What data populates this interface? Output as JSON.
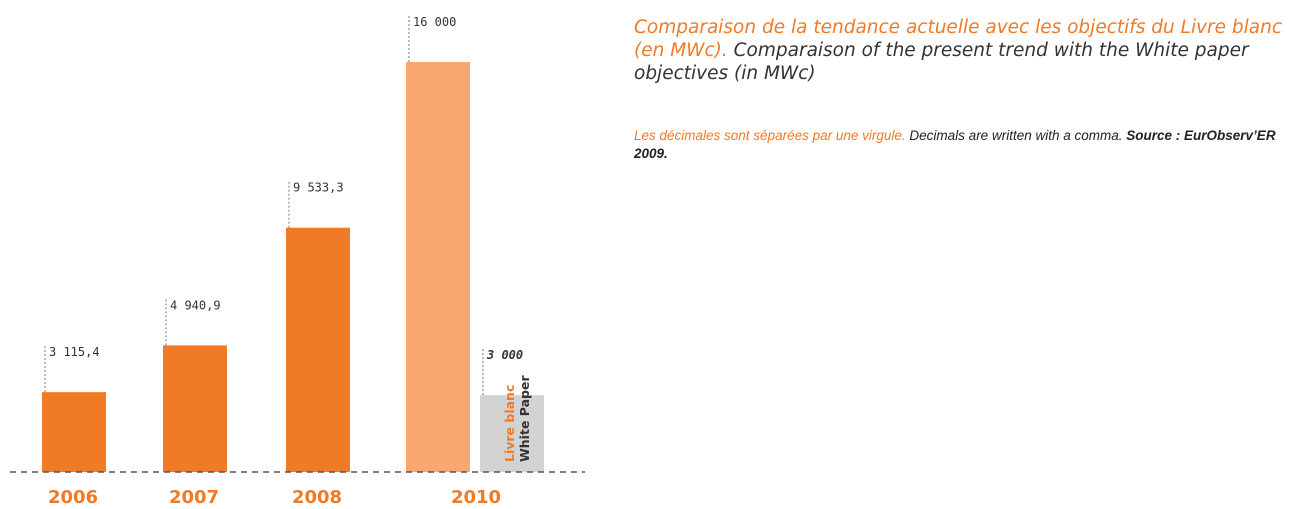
{
  "title": {
    "fr": "Comparaison de la tendance actuelle avec les objectifs du Livre blanc (en MWc).",
    "en": "Comparaison of the present trend with the White paper objectives (in MWc)"
  },
  "note": {
    "fr": "Les décimales sont séparées par une virgule.",
    "en": "Decimals are written with a comma.",
    "source_prefix": "Source :",
    "source_name": "EurObserv’ER 2009."
  },
  "colors": {
    "accent": "#f07a26",
    "light_accent": "#f8a86e",
    "grey": "#d3d3d3",
    "text": "#333333"
  },
  "chart_data": {
    "type": "bar",
    "ylim": [
      0,
      16000
    ],
    "grid": false,
    "bars": [
      {
        "category": "2006",
        "value": 3115.4,
        "label": "3 115,4",
        "style": "trend"
      },
      {
        "category": "2007",
        "value": 4940.9,
        "label": "4 940,9",
        "style": "trend"
      },
      {
        "category": "2008",
        "value": 9533.3,
        "label": "9 533,3",
        "style": "trend"
      },
      {
        "category": "2010",
        "value": 16000,
        "label": "16 000",
        "style": "objective"
      },
      {
        "category": "2010",
        "value": 3000,
        "label": "3 000",
        "style": "white_paper"
      }
    ],
    "white_paper_label": {
      "fr": "Livre blanc",
      "en": "White Paper"
    },
    "x_labels": [
      "2006",
      "2007",
      "2008",
      "2010"
    ]
  }
}
